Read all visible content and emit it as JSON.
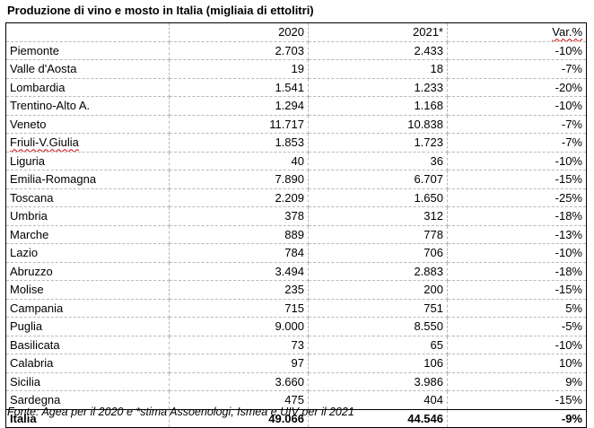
{
  "title": "Produzione di vino e mosto in Italia (migliaia di ettolitri)",
  "columns": [
    "",
    "2020",
    "2021*",
    "Var.%"
  ],
  "rows": [
    {
      "region": "Piemonte",
      "y2020": "2.703",
      "y2021": "2.433",
      "var": "-10%"
    },
    {
      "region": "Valle d'Aosta",
      "y2020": "19",
      "y2021": "18",
      "var": "-7%"
    },
    {
      "region": "Lombardia",
      "y2020": "1.541",
      "y2021": "1.233",
      "var": "-20%"
    },
    {
      "region": "Trentino-Alto A.",
      "y2020": "1.294",
      "y2021": "1.168",
      "var": "-10%"
    },
    {
      "region": "Veneto",
      "y2020": "11.717",
      "y2021": "10.838",
      "var": "-7%"
    },
    {
      "region": "Friuli-V.Giulia",
      "y2020": "1.853",
      "y2021": "1.723",
      "var": "-7%"
    },
    {
      "region": "Liguria",
      "y2020": "40",
      "y2021": "36",
      "var": "-10%"
    },
    {
      "region": "Emilia-Romagna",
      "y2020": "7.890",
      "y2021": "6.707",
      "var": "-15%"
    },
    {
      "region": "Toscana",
      "y2020": "2.209",
      "y2021": "1.650",
      "var": "-25%"
    },
    {
      "region": "Umbria",
      "y2020": "378",
      "y2021": "312",
      "var": "-18%"
    },
    {
      "region": "Marche",
      "y2020": "889",
      "y2021": "778",
      "var": "-13%"
    },
    {
      "region": "Lazio",
      "y2020": "784",
      "y2021": "706",
      "var": "-10%"
    },
    {
      "region": "Abruzzo",
      "y2020": "3.494",
      "y2021": "2.883",
      "var": "-18%"
    },
    {
      "region": "Molise",
      "y2020": "235",
      "y2021": "200",
      "var": "-15%"
    },
    {
      "region": "Campania",
      "y2020": "715",
      "y2021": "751",
      "var": "5%"
    },
    {
      "region": "Puglia",
      "y2020": "9.000",
      "y2021": "8.550",
      "var": "-5%"
    },
    {
      "region": "Basilicata",
      "y2020": "73",
      "y2021": "65",
      "var": "-10%"
    },
    {
      "region": "Calabria",
      "y2020": "97",
      "y2021": "106",
      "var": "10%"
    },
    {
      "region": "Sicilia",
      "y2020": "3.660",
      "y2021": "3.986",
      "var": "9%"
    },
    {
      "region": "Sardegna",
      "y2020": "475",
      "y2021": "404",
      "var": "-15%"
    }
  ],
  "total": {
    "region": "Italia",
    "y2020": "49.066",
    "y2021": "44.546",
    "var": "-9%"
  },
  "source": "Fonte: Agea per il 2020 e *stima Assoenologi, Ismea e UIV per il 2021"
}
